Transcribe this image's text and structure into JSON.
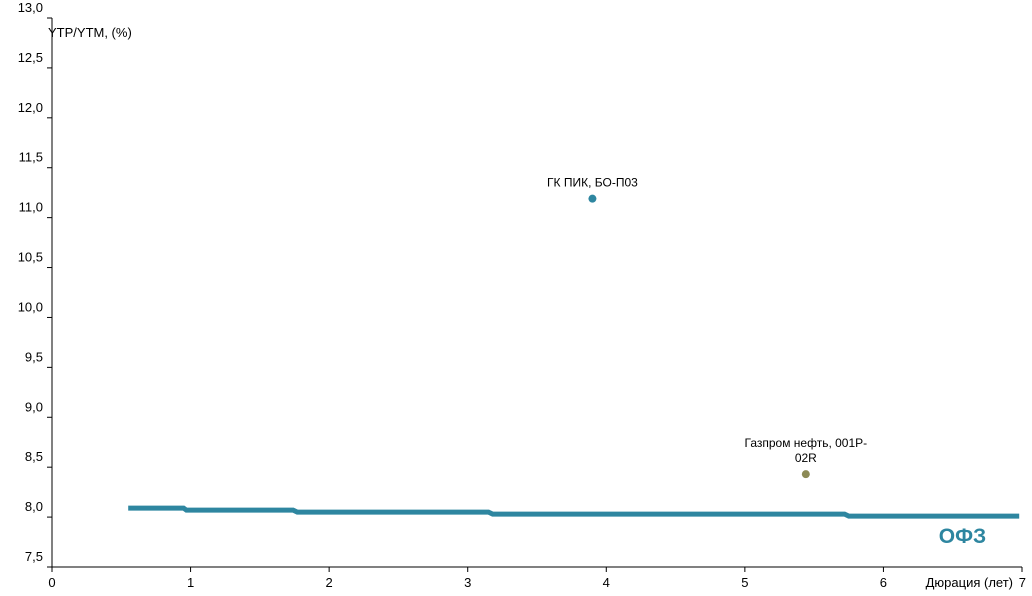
{
  "chart_data": {
    "type": "scatter",
    "ylabel": "YTP/YTM, (%)",
    "xlabel": "Дюрация (лет)",
    "xlim": [
      0,
      7
    ],
    "ylim": [
      7.5,
      13.0
    ],
    "x_ticks": [
      "0",
      "1",
      "2",
      "3",
      "4",
      "5",
      "6",
      "7"
    ],
    "y_ticks": [
      "7,5",
      "8,0",
      "8,5",
      "9,0",
      "9,5",
      "10,0",
      "10,5",
      "11,0",
      "11,5",
      "12,0",
      "12,5",
      "13,0"
    ],
    "grid": false,
    "series": [
      {
        "name": "ОФЗ",
        "type": "line",
        "color": "#2e86a0",
        "points": [
          [
            0.55,
            8.09
          ],
          [
            0.95,
            8.09
          ],
          [
            0.97,
            8.07
          ],
          [
            1.74,
            8.07
          ],
          [
            1.77,
            8.05
          ],
          [
            3.15,
            8.05
          ],
          [
            3.18,
            8.03
          ],
          [
            5.72,
            8.03
          ],
          [
            5.75,
            8.01
          ],
          [
            6.98,
            8.01
          ]
        ]
      },
      {
        "type": "scatter",
        "points": [
          {
            "x": 3.9,
            "y": 11.19,
            "label": "ГК ПИК, БО-П03",
            "color": "#2e86a0"
          },
          {
            "x": 5.44,
            "y": 8.43,
            "label": "Газпром нефть, 001Р-02R",
            "label_lines": [
              "Газпром нефть, 001Р-",
              "02R"
            ],
            "color": "#8c8a55"
          }
        ]
      }
    ]
  }
}
